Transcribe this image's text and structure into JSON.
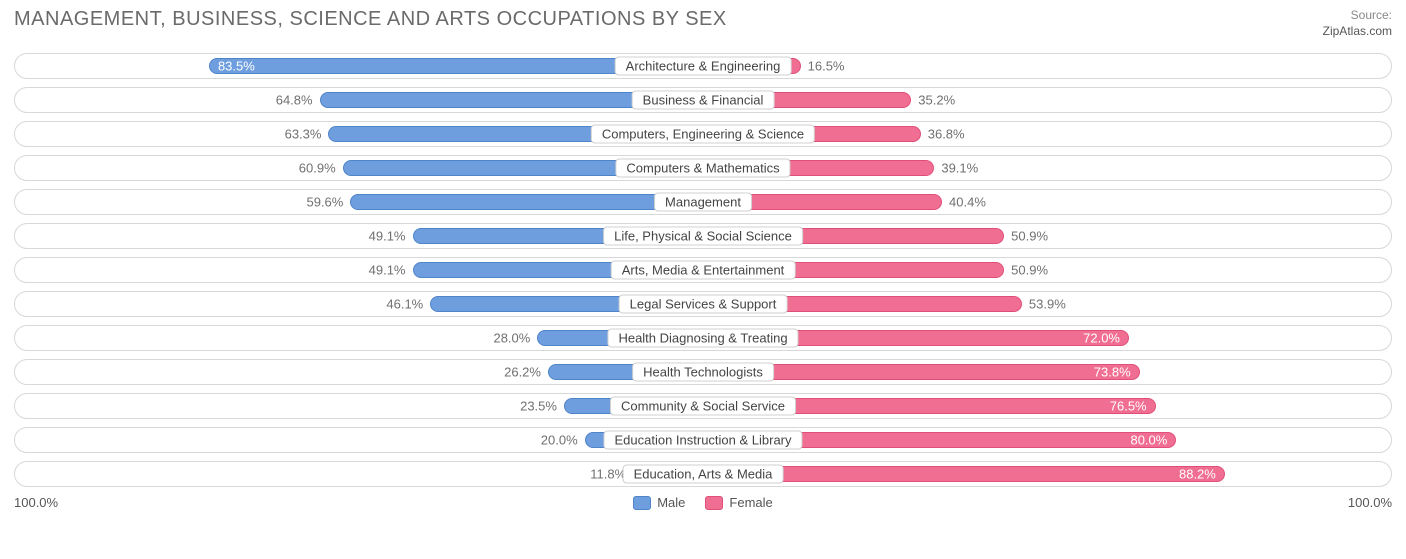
{
  "title": "MANAGEMENT, BUSINESS, SCIENCE AND ARTS OCCUPATIONS BY SEX",
  "title_color": "#6a6a6a",
  "source_label": "Source:",
  "source_name": "ZipAtlas.com",
  "colors": {
    "male_fill": "#6e9ede",
    "male_border": "#4f84c9",
    "female_fill": "#f06e92",
    "female_border": "#e04f7a",
    "label_text": "#707070",
    "track_border": "#d8d8d8"
  },
  "axis": {
    "left": "100.0%",
    "right": "100.0%"
  },
  "legend": {
    "male": "Male",
    "female": "Female"
  },
  "rows": [
    {
      "category": "Architecture & Engineering",
      "male": 83.5,
      "female": 16.5,
      "male_label": "83.5%",
      "female_label": "16.5%",
      "male_inside": true,
      "female_inside": false
    },
    {
      "category": "Business & Financial",
      "male": 64.8,
      "female": 35.2,
      "male_label": "64.8%",
      "female_label": "35.2%",
      "male_inside": false,
      "female_inside": false
    },
    {
      "category": "Computers, Engineering & Science",
      "male": 63.3,
      "female": 36.8,
      "male_label": "63.3%",
      "female_label": "36.8%",
      "male_inside": false,
      "female_inside": false
    },
    {
      "category": "Computers & Mathematics",
      "male": 60.9,
      "female": 39.1,
      "male_label": "60.9%",
      "female_label": "39.1%",
      "male_inside": false,
      "female_inside": false
    },
    {
      "category": "Management",
      "male": 59.6,
      "female": 40.4,
      "male_label": "59.6%",
      "female_label": "40.4%",
      "male_inside": false,
      "female_inside": false
    },
    {
      "category": "Life, Physical & Social Science",
      "male": 49.1,
      "female": 50.9,
      "male_label": "49.1%",
      "female_label": "50.9%",
      "male_inside": false,
      "female_inside": false
    },
    {
      "category": "Arts, Media & Entertainment",
      "male": 49.1,
      "female": 50.9,
      "male_label": "49.1%",
      "female_label": "50.9%",
      "male_inside": false,
      "female_inside": false
    },
    {
      "category": "Legal Services & Support",
      "male": 46.1,
      "female": 53.9,
      "male_label": "46.1%",
      "female_label": "53.9%",
      "male_inside": false,
      "female_inside": false
    },
    {
      "category": "Health Diagnosing & Treating",
      "male": 28.0,
      "female": 72.0,
      "male_label": "28.0%",
      "female_label": "72.0%",
      "male_inside": false,
      "female_inside": true
    },
    {
      "category": "Health Technologists",
      "male": 26.2,
      "female": 73.8,
      "male_label": "26.2%",
      "female_label": "73.8%",
      "male_inside": false,
      "female_inside": true
    },
    {
      "category": "Community & Social Service",
      "male": 23.5,
      "female": 76.5,
      "male_label": "23.5%",
      "female_label": "76.5%",
      "male_inside": false,
      "female_inside": true
    },
    {
      "category": "Education Instruction & Library",
      "male": 20.0,
      "female": 80.0,
      "male_label": "20.0%",
      "female_label": "80.0%",
      "male_inside": false,
      "female_inside": true
    },
    {
      "category": "Education, Arts & Media",
      "male": 11.8,
      "female": 88.2,
      "male_label": "11.8%",
      "female_label": "88.2%",
      "male_inside": false,
      "female_inside": true
    }
  ]
}
